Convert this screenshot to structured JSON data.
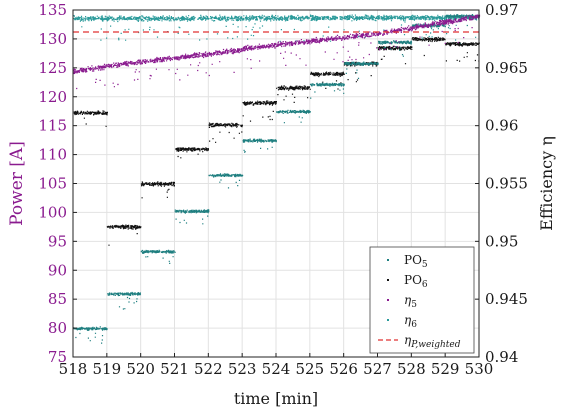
{
  "chart_data": {
    "type": "scatter",
    "title": "",
    "xlabel": "time [min]",
    "ylabel_left": "Power [A]",
    "ylabel_right": "Efficiency η",
    "xlim": [
      518,
      530
    ],
    "ylim_left": [
      75,
      135
    ],
    "ylim_right": [
      0.94,
      0.97
    ],
    "x_ticks": [
      518,
      519,
      520,
      521,
      522,
      523,
      524,
      525,
      526,
      527,
      528,
      529,
      530
    ],
    "y_ticks_left": [
      75,
      80,
      85,
      90,
      95,
      100,
      105,
      110,
      115,
      120,
      125,
      130,
      135
    ],
    "y_ticks_right": [
      "0.94",
      "0.945",
      "0.95",
      "0.955",
      "0.96",
      "0.965",
      "0.97"
    ],
    "grid": true,
    "legend_position": "bottom-right",
    "colors": {
      "PO5": "#1f7f80",
      "PO6": "#111111",
      "eta5": "#8a1b8f",
      "eta6": "#2a9a9a",
      "weighted": "#e03030",
      "left_axis": "#8a1b8f"
    },
    "series": [
      {
        "name": "PO₅",
        "key": "PO5",
        "axis": "left",
        "jitter": 0.35,
        "segments": [
          {
            "x": [
              518,
              519
            ],
            "y": 80
          },
          {
            "x": [
              519,
              520
            ],
            "y": 86
          },
          {
            "x": [
              520,
              521
            ],
            "y": 93.3
          },
          {
            "x": [
              521,
              522
            ],
            "y": 100.3
          },
          {
            "x": [
              522,
              523
            ],
            "y": 106.5
          },
          {
            "x": [
              523,
              524
            ],
            "y": 112.5
          },
          {
            "x": [
              524,
              525
            ],
            "y": 117.5
          },
          {
            "x": [
              525,
              526
            ],
            "y": 122.2
          },
          {
            "x": [
              526,
              527
            ],
            "y": 125.8
          },
          {
            "x": [
              527,
              528
            ],
            "y": 129.5
          },
          {
            "x": [
              528,
              529
            ],
            "y": 132.4
          },
          {
            "x": [
              529,
              530
            ],
            "y": 134
          }
        ]
      },
      {
        "name": "PO₆",
        "key": "PO6",
        "axis": "left",
        "jitter": 0.45,
        "segments": [
          {
            "x": [
              518,
              519
            ],
            "y": 117.3
          },
          {
            "x": [
              519,
              520
            ],
            "y": 97.6
          },
          {
            "x": [
              520,
              521
            ],
            "y": 105
          },
          {
            "x": [
              521,
              522
            ],
            "y": 111
          },
          {
            "x": [
              522,
              523
            ],
            "y": 115.2
          },
          {
            "x": [
              523,
              524
            ],
            "y": 119
          },
          {
            "x": [
              524,
              525
            ],
            "y": 121.6
          },
          {
            "x": [
              525,
              526
            ],
            "y": 124
          },
          {
            "x": [
              526,
              527
            ],
            "y": 125.8
          },
          {
            "x": [
              527,
              528
            ],
            "y": 128.5
          },
          {
            "x": [
              528,
              529
            ],
            "y": 130
          },
          {
            "x": [
              529,
              530
            ],
            "y": 129.2
          }
        ]
      },
      {
        "name": "η₅",
        "key": "eta5",
        "axis": "right",
        "jitter": 0.0003,
        "segments": [
          {
            "x": [
              518,
              519
            ],
            "y": 0.9647,
            "y_end": 0.9652
          },
          {
            "x": [
              519,
              523
            ],
            "y": 0.9652,
            "y_end": 0.9666
          },
          {
            "x": [
              523,
              527
            ],
            "y": 0.9667,
            "y_end": 0.968
          },
          {
            "x": [
              527,
              530
            ],
            "y": 0.968,
            "y_end": 0.9695
          }
        ]
      },
      {
        "name": "η₆",
        "key": "eta6",
        "axis": "right",
        "jitter": 0.0003,
        "segments": [
          {
            "x": [
              518,
              530
            ],
            "y": 0.9693,
            "y_end": 0.9694
          }
        ]
      },
      {
        "name": "η_P,weighted",
        "key": "weighted",
        "axis": "right",
        "style": "dashed",
        "value": 0.9681
      }
    ]
  },
  "legend": {
    "items": [
      {
        "main": "PO",
        "sub": "5"
      },
      {
        "main": "PO",
        "sub": "6"
      },
      {
        "main": "η",
        "sub": "5"
      },
      {
        "main": "η",
        "sub": "6"
      },
      {
        "main": "η",
        "sub": "P,weighted"
      }
    ]
  }
}
